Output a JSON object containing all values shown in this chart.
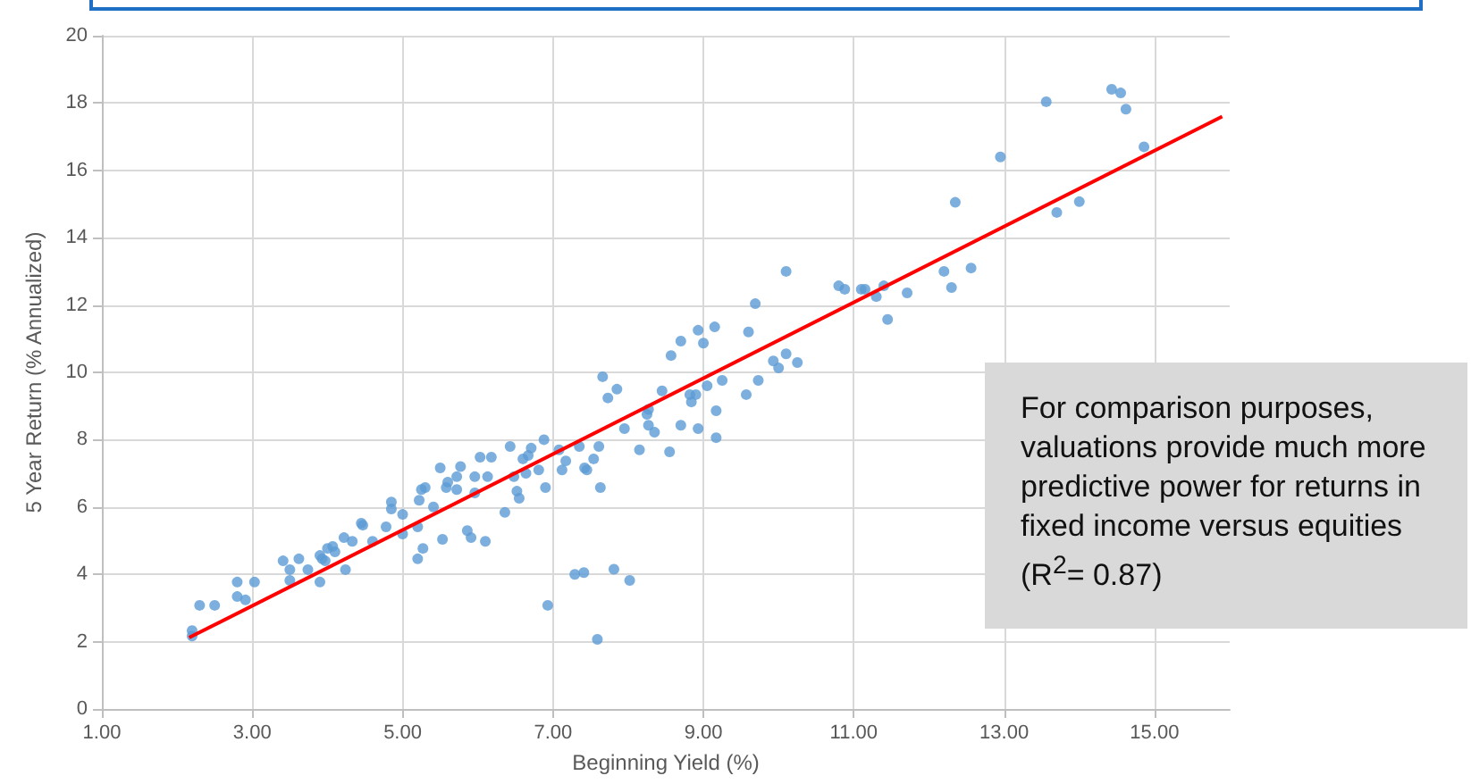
{
  "chart_data": {
    "type": "scatter",
    "xlabel": "Beginning Yield (%)",
    "ylabel": "5 Year Return (% Annualized)",
    "annotations": [
      "For comparison purposes, valuations provide much more predictive power for returns in fixed income versus equities (R$^{2}$= 0.87)"
    ],
    "xlim": [
      1,
      16
    ],
    "xticks": [
      {
        "value": 1,
        "label": "1.00"
      },
      {
        "value": 3,
        "label": "3.00"
      },
      {
        "value": 5,
        "label": "5.00"
      },
      {
        "value": 7,
        "label": "7.00"
      },
      {
        "value": 9,
        "label": "9.00"
      },
      {
        "value": 11,
        "label": "11.00"
      },
      {
        "value": 13,
        "label": "13.00"
      },
      {
        "value": 15,
        "label": "15.00"
      }
    ],
    "ylim": [
      0,
      20
    ],
    "yticks": [
      0,
      2,
      4,
      6,
      8,
      10,
      12,
      14,
      16,
      18,
      20
    ],
    "grid": true,
    "marker": "circle",
    "series": [
      {
        "color": "#5b9bd5",
        "x": [
          2.2,
          2.2,
          2.3,
          2.5,
          2.8,
          2.8,
          2.91,
          3.03,
          3.41,
          3.5,
          3.5,
          3.62,
          3.74,
          3.9,
          3.9,
          3.93,
          4.0,
          3.97,
          4.07,
          4.1,
          4.24,
          4.22,
          4.33,
          4.45,
          4.47,
          4.6,
          4.78,
          4.85,
          4.85,
          5.0,
          5.0,
          5.2,
          5.27,
          5.2,
          5.22,
          5.25,
          5.3,
          5.41,
          5.5,
          5.53,
          5.6,
          5.58,
          5.72,
          5.72,
          5.77,
          5.86,
          5.91,
          5.96,
          5.96,
          6.03,
          6.1,
          6.13,
          6.18,
          6.36,
          6.43,
          6.48,
          6.52,
          6.55,
          6.6,
          6.64,
          6.67,
          6.71,
          6.81,
          6.88,
          6.9,
          6.93,
          7.08,
          7.12,
          7.17,
          7.35,
          7.42,
          7.45,
          7.54,
          7.61,
          7.63,
          7.29,
          7.41,
          7.81,
          8.02,
          7.59,
          7.66,
          7.73,
          7.85,
          7.95,
          8.15,
          8.25,
          8.27,
          8.27,
          8.35,
          8.45,
          8.55,
          8.57,
          8.7,
          8.7,
          8.82,
          8.84,
          8.9,
          8.93,
          8.93,
          9.0,
          9.05,
          9.15,
          9.17,
          9.17,
          9.25,
          9.57,
          9.6,
          9.69,
          9.73,
          9.93,
          10.0,
          10.1,
          10.25,
          10.1,
          10.8,
          10.88,
          11.1,
          11.15,
          11.3,
          11.4,
          11.45,
          11.71,
          12.2,
          12.3,
          12.56,
          12.35,
          12.95,
          13.7,
          14.0,
          14.86,
          13.56,
          14.43,
          14.55,
          14.62
        ],
        "values": [
          2.33,
          2.17,
          3.08,
          3.08,
          3.77,
          3.34,
          3.24,
          3.77,
          4.4,
          4.14,
          3.82,
          4.46,
          4.14,
          3.77,
          4.56,
          4.46,
          4.77,
          4.4,
          4.83,
          4.67,
          4.14,
          5.09,
          4.98,
          5.52,
          5.46,
          4.98,
          5.41,
          6.15,
          5.94,
          5.78,
          5.2,
          4.46,
          4.77,
          5.41,
          6.2,
          6.52,
          6.58,
          6.0,
          7.16,
          5.04,
          6.74,
          6.58,
          6.52,
          6.9,
          7.2,
          5.3,
          5.09,
          6.9,
          6.42,
          7.48,
          4.98,
          6.9,
          7.48,
          5.84,
          7.8,
          6.9,
          6.47,
          6.26,
          7.43,
          7.0,
          7.53,
          7.75,
          7.1,
          8.0,
          6.58,
          3.08,
          7.7,
          7.1,
          7.37,
          7.8,
          7.16,
          7.1,
          7.43,
          7.8,
          6.58,
          4.0,
          4.05,
          4.15,
          3.82,
          2.07,
          9.87,
          9.24,
          9.5,
          8.33,
          7.7,
          8.75,
          8.9,
          8.43,
          8.22,
          9.45,
          7.64,
          10.5,
          10.93,
          8.43,
          9.34,
          9.12,
          9.34,
          11.25,
          8.33,
          10.87,
          9.6,
          11.35,
          8.86,
          8.06,
          9.76,
          9.34,
          11.2,
          12.04,
          9.76,
          10.34,
          10.13,
          10.55,
          10.29,
          13.0,
          12.57,
          12.47,
          12.47,
          12.47,
          12.25,
          12.57,
          11.57,
          12.36,
          13.0,
          12.52,
          13.1,
          15.05,
          16.4,
          14.75,
          15.07,
          16.7,
          18.04,
          18.41,
          18.3,
          17.82
        ]
      },
      {
        "type": "line",
        "color": "#ff0000",
        "marker": "none",
        "x": [
          2.16,
          15.9
        ],
        "values": [
          2.12,
          17.6
        ]
      }
    ]
  }
}
